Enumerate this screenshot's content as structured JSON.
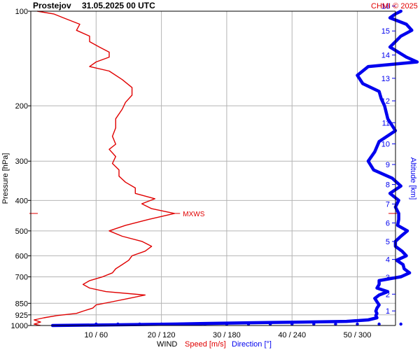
{
  "chart_data": {
    "type": "line",
    "station": "Prostejov",
    "datetime": "31.05.2025 00 UTC",
    "credit": "CHMI © 2025",
    "ylabel_left": "Pressure [hPa]",
    "ylabel_right": "Altitude [km]",
    "xlabel": "WIND",
    "xlabel_speed": "Speed [m/s]",
    "xlabel_direction": "Direction [°]",
    "y_scale": "log pressure",
    "ylim_hpa": [
      1000,
      100
    ],
    "xlim_speed": [
      0,
      29
    ],
    "xlim_direction": [
      0,
      360
    ],
    "pressure_ticks": [
      "100",
      "200",
      "300",
      "400",
      "500",
      "600",
      "700",
      "850",
      "925",
      "1000"
    ],
    "pressure_tick_values": [
      100,
      200,
      300,
      400,
      500,
      600,
      700,
      850,
      925,
      1000
    ],
    "altitude_ticks": [
      "1",
      "2",
      "3",
      "4",
      "5",
      "6",
      "7",
      "8",
      "9",
      "10",
      "11",
      "12",
      "13",
      "14",
      "15",
      "16"
    ],
    "altitude_tick_values": [
      1,
      2,
      3,
      4,
      5,
      6,
      7,
      8,
      9,
      10,
      11,
      12,
      13,
      14,
      15,
      16
    ],
    "x_ticks": [
      "10 / 60",
      "20 / 120",
      "30 / 180",
      "40 / 240",
      "50 / 300"
    ],
    "x_tick_speed_values": [
      10,
      20,
      30,
      40,
      50
    ],
    "mxws_label": "MXWS",
    "mxws_pressure_hpa": 440,
    "colors": {
      "speed": "#e00000",
      "direction": "#0000ee",
      "grid": "#b4b4b4",
      "credit": "#e00000"
    },
    "series": [
      {
        "name": "Speed [m/s]",
        "pressure": [
          1000,
          990,
          975,
          960,
          945,
          930,
          915,
          900,
          880,
          860,
          840,
          820,
          800,
          780,
          760,
          740,
          720,
          700,
          680,
          660,
          640,
          620,
          600,
          580,
          560,
          540,
          520,
          500,
          480,
          460,
          440,
          425,
          410,
          395,
          380,
          365,
          350,
          335,
          320,
          305,
          290,
          275,
          265,
          250,
          235,
          220,
          205,
          195,
          185,
          175,
          165,
          155,
          150,
          145,
          140,
          135,
          130,
          125,
          120,
          115,
          110,
          105,
          102,
          100
        ],
        "values": [
          1.5,
          0.5,
          1.5,
          0.5,
          2,
          4,
          7,
          8,
          9.5,
          10,
          12.5,
          15,
          17.5,
          11.5,
          9,
          8,
          9,
          11,
          12.5,
          13,
          14,
          15,
          15.5,
          17.5,
          18.5,
          17,
          14,
          12,
          14.5,
          18,
          22,
          18.5,
          17,
          19,
          16,
          16,
          14.5,
          13.5,
          13.5,
          12.5,
          13,
          12,
          13,
          12.5,
          13,
          13,
          14,
          14.5,
          15.5,
          15.5,
          14,
          12,
          9,
          10,
          12,
          12,
          10.5,
          9,
          9,
          7,
          7.5,
          5,
          3.5,
          1
        ]
      },
      {
        "name": "Direction [°]",
        "pressure": [
          1000,
          995,
          990,
          985,
          980,
          975,
          970,
          960,
          945,
          930,
          915,
          900,
          880,
          860,
          840,
          820,
          800,
          780,
          760,
          740,
          720,
          700,
          680,
          660,
          640,
          620,
          600,
          580,
          560,
          540,
          520,
          500,
          480,
          460,
          440,
          420,
          400,
          380,
          360,
          340,
          320,
          300,
          280,
          260,
          240,
          220,
          200,
          190,
          180,
          170,
          160,
          150,
          145,
          140,
          130,
          125,
          120,
          115,
          110,
          105,
          102,
          100
        ],
        "values": [
          20,
          80,
          130,
          160,
          200,
          250,
          290,
          310,
          318,
          317,
          318,
          317,
          318,
          320,
          318,
          316,
          320,
          328,
          318,
          320,
          320,
          340,
          348,
          343,
          342,
          336,
          345,
          341,
          335,
          335,
          340,
          346,
          337,
          338,
          338,
          335,
          338,
          330,
          340,
          332,
          315,
          310,
          316,
          320,
          335,
          328,
          325,
          322,
          320,
          305,
          300,
          310,
          355,
          345,
          330,
          335,
          340,
          350,
          345,
          330,
          335,
          340
        ]
      }
    ],
    "grid": true
  }
}
